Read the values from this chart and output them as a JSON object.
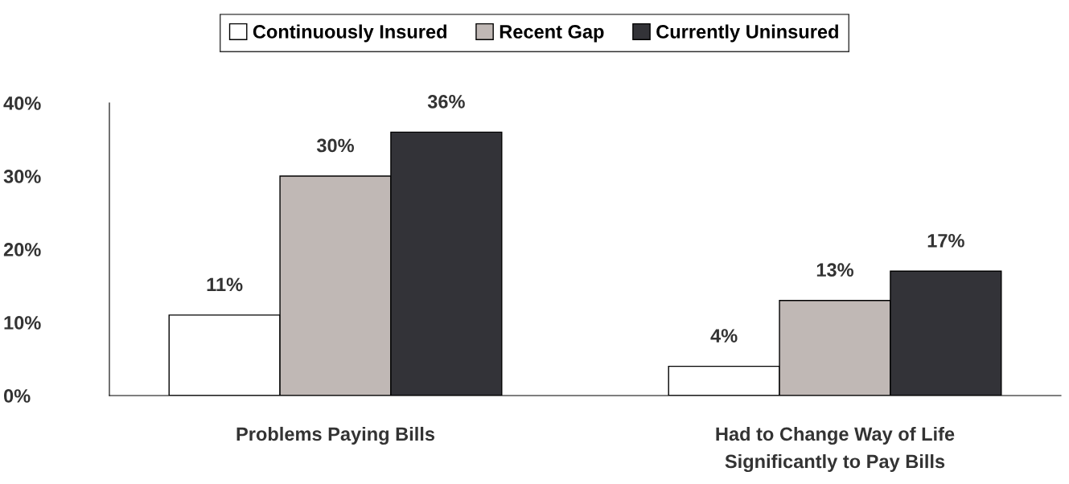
{
  "chart_data": {
    "type": "bar",
    "categories": [
      "Problems Paying Bills",
      "Had to Change Way of Life\nSignificantly to Pay Bills"
    ],
    "series": [
      {
        "name": "Continuously Insured",
        "color": "#ffffff",
        "values": [
          11,
          4
        ],
        "value_labels": [
          "11%",
          "4%"
        ]
      },
      {
        "name": "Recent Gap",
        "color": "#c0b8b5",
        "values": [
          30,
          13
        ],
        "value_labels": [
          "30%",
          "13%"
        ]
      },
      {
        "name": "Currently Uninsured",
        "color": "#333338",
        "values": [
          36,
          17
        ],
        "value_labels": [
          "36%",
          "17%"
        ]
      }
    ],
    "ylim": [
      0,
      40
    ],
    "yticks": [
      {
        "value": 0,
        "label": "0%"
      },
      {
        "value": 10,
        "label": "10%"
      },
      {
        "value": 20,
        "label": "20%"
      },
      {
        "value": 30,
        "label": "30%"
      },
      {
        "value": 40,
        "label": "40%"
      }
    ],
    "grid": false,
    "legend": "top"
  }
}
